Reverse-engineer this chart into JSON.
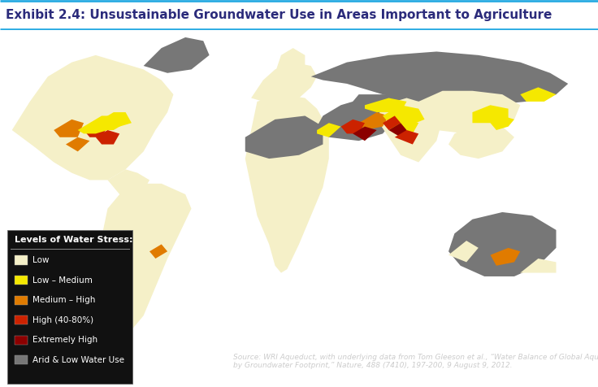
{
  "title": "Exhibit 2.4: Unsustainable Groundwater Use in Areas Important to Agriculture",
  "title_color": "#2b2b7b",
  "title_fontsize": 11,
  "background_color": "#2a2a2a",
  "figure_bg": "#ffffff",
  "border_color": "#29abe2",
  "legend_title": "Levels of Water Stress:",
  "legend_items": [
    {
      "label": "Low",
      "color": "#f5f0c8"
    },
    {
      "label": "Low – Medium",
      "color": "#f5e800"
    },
    {
      "label": "Medium – High",
      "color": "#e07b00"
    },
    {
      "label": "High (40-80%)",
      "color": "#cc2200"
    },
    {
      "label": "Extremely High",
      "color": "#8b0000"
    },
    {
      "label": "Arid & Low Water Use",
      "color": "#777777"
    }
  ],
  "source_text": "Source: WRI Aqueduct, with underlying data from Tom Gleeson et al., “Water Balance of Global Aquifers Revealed\nby Groundwater Footprint,” Nature, 488 (7410), 197-200, 9 August 9, 2012.",
  "source_color": "#cccccc",
  "source_fontsize": 6.5,
  "legend_text_color": "#ffffff",
  "legend_fontsize": 8,
  "figsize": [
    7.36,
    4.76
  ],
  "dpi": 100
}
